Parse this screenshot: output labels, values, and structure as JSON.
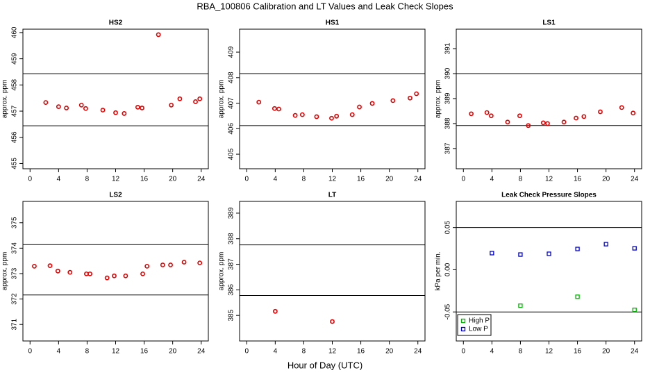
{
  "title": "RBA_100806  Calibration and LT Values and Leak Check Slopes",
  "xlabel": "Hour of Day (UTC)",
  "chart_data": [
    {
      "type": "scatter",
      "title": "HS2",
      "ylabel": "approx. ppm",
      "marker": "circle",
      "xlim": [
        -1,
        25
      ],
      "xticks": [
        0,
        4,
        8,
        12,
        16,
        20,
        24
      ],
      "ylim": [
        454.8,
        460.13
      ],
      "yticks": [
        455,
        456,
        457,
        458,
        459,
        460
      ],
      "hlines": [
        458.43,
        456.44
      ],
      "series": [
        {
          "color": "#e00000",
          "x": [
            2.2,
            4,
            5.1,
            7.2,
            7.8,
            10.2,
            12,
            13.2,
            15.1,
            15.7,
            18,
            19.8,
            21,
            23.2,
            23.8
          ],
          "values": [
            457.33,
            457.17,
            457.12,
            457.23,
            457.1,
            457.04,
            456.94,
            456.91,
            457.15,
            457.12,
            459.92,
            457.23,
            457.47,
            457.36,
            457.47
          ]
        }
      ]
    },
    {
      "type": "scatter",
      "title": "HS1",
      "ylabel": "approx. ppm",
      "marker": "circle",
      "xlim": [
        -1,
        25
      ],
      "xticks": [
        0,
        4,
        8,
        12,
        16,
        20,
        24
      ],
      "ylim": [
        404.43,
        409.9
      ],
      "yticks": [
        405,
        406,
        407,
        408,
        409
      ],
      "hlines": [
        408.16,
        406.12
      ],
      "series": [
        {
          "color": "#e00000",
          "x": [
            1.7,
            3.9,
            4.5,
            6.8,
            7.8,
            9.8,
            11.9,
            12.6,
            14.8,
            15.8,
            17.6,
            20.5,
            22.9,
            23.8
          ],
          "values": [
            407.04,
            406.79,
            406.77,
            406.52,
            406.55,
            406.47,
            406.41,
            406.49,
            406.55,
            406.85,
            406.99,
            407.1,
            407.2,
            407.37
          ]
        }
      ]
    },
    {
      "type": "scatter",
      "title": "LS1",
      "ylabel": "approx. ppm",
      "marker": "circle",
      "xlim": [
        -1,
        25
      ],
      "xticks": [
        0,
        4,
        8,
        12,
        16,
        20,
        24
      ],
      "ylim": [
        386.19,
        391.78
      ],
      "yticks": [
        387,
        388,
        389,
        390,
        391
      ],
      "hlines": [
        390.0,
        387.92
      ],
      "series": [
        {
          "color": "#e00000",
          "x": [
            1.1,
            3.3,
            3.9,
            6.2,
            7.9,
            9.1,
            11.2,
            11.8,
            14.1,
            15.8,
            16.9,
            19.2,
            22.2,
            23.8
          ],
          "values": [
            388.39,
            388.44,
            388.31,
            388.06,
            388.31,
            387.92,
            388.03,
            388.0,
            388.06,
            388.22,
            388.28,
            388.47,
            388.64,
            388.42
          ]
        }
      ]
    },
    {
      "type": "scatter",
      "title": "LS2",
      "ylabel": "approx. ppm",
      "marker": "circle",
      "xlim": [
        -1,
        25
      ],
      "xticks": [
        0,
        4,
        8,
        12,
        16,
        20,
        24
      ],
      "ylim": [
        370.35,
        375.84
      ],
      "yticks": [
        371,
        372,
        373,
        374,
        375
      ],
      "hlines": [
        374.14,
        372.16
      ],
      "series": [
        {
          "color": "#e00000",
          "x": [
            0.6,
            2.8,
            3.9,
            5.6,
            7.9,
            8.4,
            10.8,
            11.8,
            13.4,
            15.8,
            16.4,
            18.6,
            19.7,
            21.6,
            23.8
          ],
          "values": [
            373.29,
            373.31,
            373.1,
            373.05,
            372.99,
            372.99,
            372.83,
            372.91,
            372.91,
            372.99,
            373.29,
            373.34,
            373.34,
            373.45,
            373.42
          ]
        }
      ]
    },
    {
      "type": "scatter",
      "title": "LT",
      "ylabel": "approx. ppm",
      "marker": "circle",
      "xlim": [
        -1,
        25
      ],
      "xticks": [
        0,
        4,
        8,
        12,
        16,
        20,
        24
      ],
      "ylim": [
        384.0,
        389.46
      ],
      "yticks": [
        385,
        386,
        387,
        388,
        389
      ],
      "hlines": [
        387.76,
        385.78
      ],
      "series": [
        {
          "color": "#e00000",
          "x": [
            4,
            12
          ],
          "values": [
            385.16,
            384.76
          ]
        }
      ]
    },
    {
      "type": "scatter",
      "title": "Leak Check Pressure Slopes",
      "ylabel": "kPa per min.",
      "marker": "square",
      "xlim": [
        -1,
        25
      ],
      "xticks": [
        0,
        4,
        8,
        12,
        16,
        20,
        24
      ],
      "ylim": [
        -0.0844,
        0.081
      ],
      "yticks": [
        {
          "value": -0.05,
          "label": "-0.05"
        },
        {
          "value": 0,
          "label": "0.00"
        },
        {
          "value": 0.05,
          "label": "0.05"
        }
      ],
      "hlines": [
        0.05,
        -0.05
      ],
      "legend": "bottom-left",
      "series": [
        {
          "name": "High P",
          "color": "#00b000",
          "x": [
            8,
            16,
            24
          ],
          "values": [
            -0.0426,
            -0.032,
            -0.0475
          ]
        },
        {
          "name": "Low P",
          "color": "#0000d0",
          "x": [
            4,
            8,
            12,
            16,
            20,
            24
          ],
          "values": [
            0.0197,
            0.018,
            0.0189,
            0.0246,
            0.0303,
            0.0254
          ]
        }
      ]
    }
  ]
}
